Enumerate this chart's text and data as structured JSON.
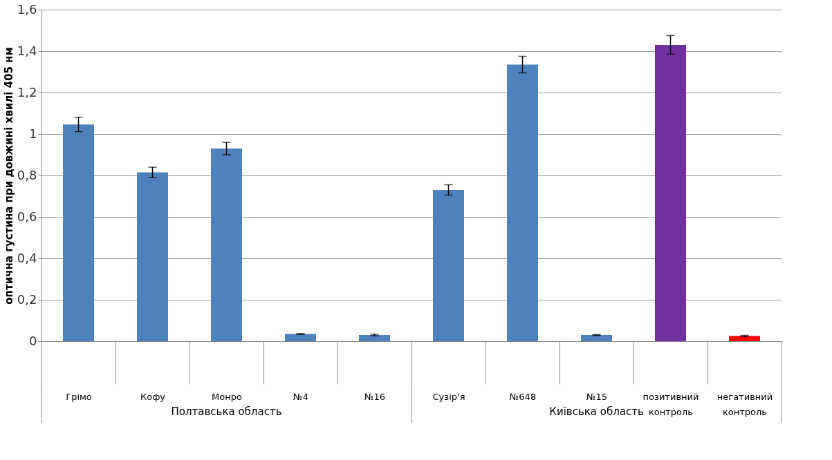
{
  "chart_data": {
    "type": "bar",
    "ylabel": "оптична густина при довжині хвилі 405 нм",
    "categories": [
      "Грімо",
      "Кофу",
      "Монро",
      "№4",
      "№16",
      "Сузір'я",
      "№648",
      "№15",
      "позитивний контроль",
      "негативний контроль"
    ],
    "values": [
      1.046,
      0.815,
      0.93,
      0.035,
      0.03,
      0.73,
      1.335,
      0.03,
      1.43,
      0.025
    ],
    "errors": [
      0.035,
      0.025,
      0.03,
      0.002,
      0.004,
      0.025,
      0.04,
      0.002,
      0.045,
      0.003
    ],
    "colors": [
      "#4f81bd",
      "#4f81bd",
      "#4f81bd",
      "#4f81bd",
      "#4f81bd",
      "#4f81bd",
      "#4f81bd",
      "#4f81bd",
      "#7030a0",
      "#ff0000"
    ],
    "ylim": [
      0,
      1.6
    ],
    "yticks": [
      0,
      {
        "value": 0.2,
        "label": "0,2"
      },
      {
        "value": 0.4,
        "label": "0,4"
      },
      {
        "value": 0.6,
        "label": "0,6"
      },
      {
        "value": 0.8,
        "label": "0,8"
      },
      1,
      {
        "value": 1.2,
        "label": "1,2"
      },
      {
        "value": 1.4,
        "label": "1,4"
      },
      {
        "value": 1.6,
        "label": "1,6"
      }
    ],
    "grid": "y",
    "annotations": [
      "Полтавська область",
      "Київська область"
    ]
  }
}
